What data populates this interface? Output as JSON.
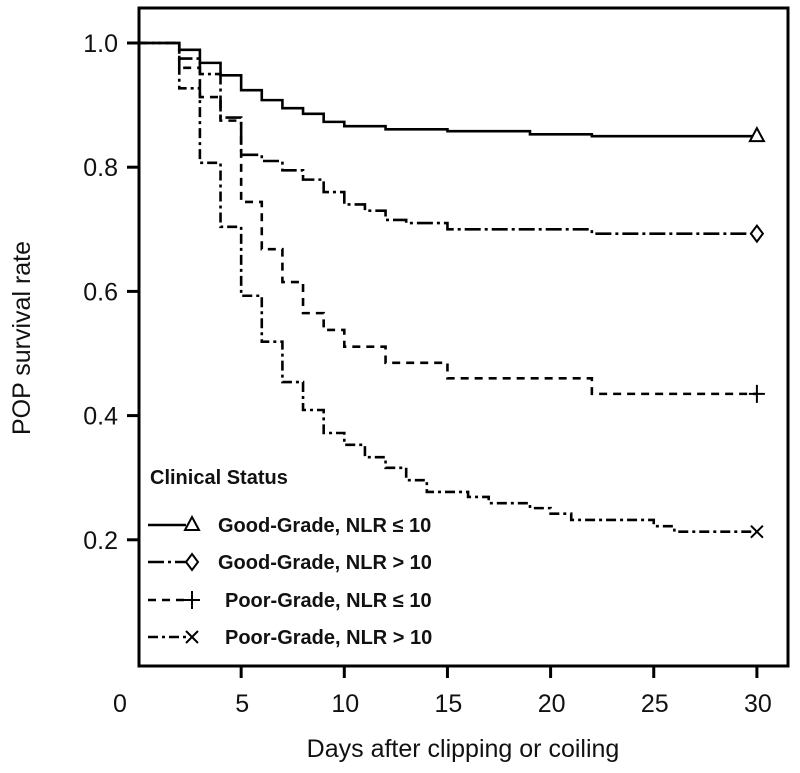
{
  "chart_data": {
    "type": "line",
    "subtype": "kaplan-meier step",
    "xlabel": "Days after clipping or coiling",
    "ylabel": "POP survival rate",
    "xlim": [
      0,
      31.5
    ],
    "ylim": [
      0.04,
      1.056
    ],
    "xticks": [
      "0",
      "5",
      "10",
      "15",
      "20",
      "25",
      "30"
    ],
    "xtick_values": [
      0,
      5,
      10,
      15,
      20,
      25,
      30
    ],
    "yticks": [
      "0.2",
      "0.4",
      "0.6",
      "0.8",
      "1.0"
    ],
    "ytick_values": [
      0.2,
      0.4,
      0.6,
      0.8,
      1.0
    ],
    "grid": false,
    "legend": {
      "title": "Clinical Status",
      "placement": "bottom-left",
      "labels": [
        "Good-Grade, NLR ≤ 10",
        "Good-Grade, NLR > 10",
        "Poor-Grade, NLR ≤ 10",
        "Poor-Grade, NLR > 10"
      ]
    },
    "series": [
      {
        "name": "Good-Grade, NLR ≤ 10",
        "style": "solid",
        "marker": "triangle",
        "x": [
          0,
          2,
          3,
          4,
          5,
          6,
          7,
          8,
          9,
          10,
          12,
          15,
          19,
          22,
          30
        ],
        "y": [
          1.0,
          0.989,
          0.968,
          0.948,
          0.924,
          0.908,
          0.895,
          0.886,
          0.873,
          0.866,
          0.861,
          0.858,
          0.853,
          0.85,
          0.85
        ]
      },
      {
        "name": "Good-Grade, NLR > 10",
        "style": "long-dash-dot",
        "marker": "diamond",
        "x": [
          0,
          2,
          3,
          4,
          5,
          6,
          7,
          8,
          9,
          10,
          11,
          12,
          13,
          15,
          22,
          30
        ],
        "y": [
          1.0,
          0.975,
          0.95,
          0.88,
          0.82,
          0.81,
          0.795,
          0.78,
          0.76,
          0.74,
          0.73,
          0.715,
          0.71,
          0.7,
          0.693,
          0.693
        ]
      },
      {
        "name": "Poor-Grade, NLR ≤ 10",
        "style": "dash",
        "marker": "plus",
        "x": [
          0,
          2,
          3,
          4,
          5,
          6,
          7,
          8,
          9,
          10,
          12,
          15,
          22,
          30
        ],
        "y": [
          1.0,
          0.96,
          0.913,
          0.875,
          0.744,
          0.668,
          0.615,
          0.565,
          0.538,
          0.511,
          0.485,
          0.46,
          0.435,
          0.435
        ]
      },
      {
        "name": "Poor-Grade, NLR > 10",
        "style": "dash-dot",
        "marker": "x",
        "x": [
          0,
          2,
          3,
          4,
          5,
          6,
          7,
          8,
          9,
          10,
          11,
          12,
          13,
          14,
          16,
          17,
          19,
          20,
          21,
          25,
          26,
          30
        ],
        "y": [
          1.0,
          0.927,
          0.807,
          0.704,
          0.593,
          0.519,
          0.454,
          0.409,
          0.372,
          0.353,
          0.333,
          0.316,
          0.296,
          0.277,
          0.269,
          0.259,
          0.251,
          0.242,
          0.232,
          0.222,
          0.213,
          0.213
        ]
      }
    ]
  }
}
